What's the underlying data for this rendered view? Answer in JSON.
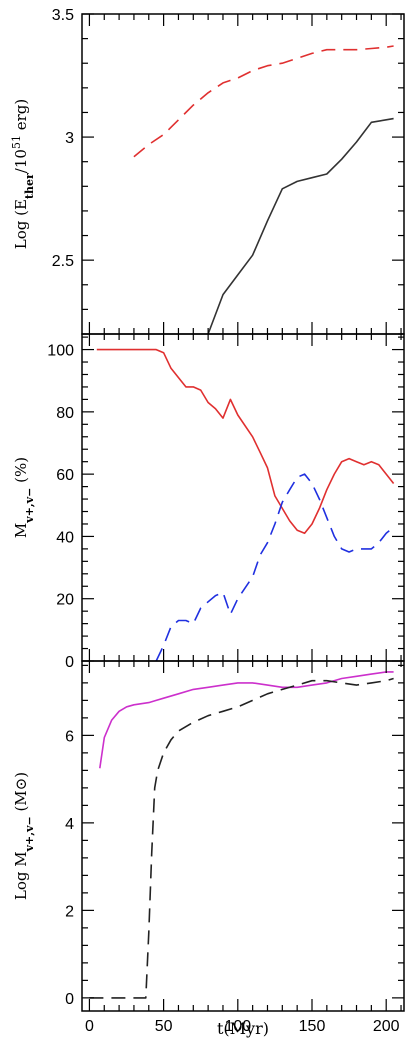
{
  "chart_data": [
    {
      "type": "line",
      "panel": "top",
      "ylabel_prefix": "Log (E",
      "ylabel_sub": "ther",
      "ylabel_mid": "/10",
      "ylabel_sup": "51",
      "ylabel_suffix": " erg)",
      "xlim": [
        -5,
        212
      ],
      "ylim": [
        2.2,
        3.5
      ],
      "yticks": [
        2.5,
        3.0,
        3.5
      ],
      "ytick_labels": [
        "2.5",
        "3",
        "3.5"
      ],
      "series": [
        {
          "color": "#e03030",
          "dash": "dashed",
          "x": [
            30,
            40,
            50,
            60,
            70,
            80,
            90,
            100,
            110,
            120,
            130,
            140,
            150,
            160,
            170,
            180,
            190,
            200,
            205
          ],
          "y": [
            2.92,
            2.97,
            3.01,
            3.07,
            3.13,
            3.18,
            3.22,
            3.24,
            3.27,
            3.29,
            3.3,
            3.32,
            3.34,
            3.355,
            3.355,
            3.355,
            3.36,
            3.365,
            3.37
          ]
        },
        {
          "color": "#333333",
          "dash": "solid",
          "x": [
            80,
            90,
            100,
            110,
            120,
            130,
            140,
            150,
            160,
            170,
            180,
            190,
            200,
            205
          ],
          "y": [
            2.2,
            2.36,
            2.44,
            2.52,
            2.66,
            2.79,
            2.82,
            2.835,
            2.85,
            2.91,
            2.98,
            3.06,
            3.07,
            3.075
          ]
        }
      ]
    },
    {
      "type": "line",
      "panel": "middle",
      "ylabel_prefix": "M",
      "ylabel_sub": "v+,v−",
      "ylabel_suffix": "  (%)",
      "xlim": [
        -5,
        212
      ],
      "ylim": [
        0,
        105
      ],
      "yticks": [
        0,
        20,
        40,
        60,
        80,
        100
      ],
      "ytick_labels": [
        "0",
        "20",
        "40",
        "60",
        "80",
        "100"
      ],
      "series": [
        {
          "color": "#e03030",
          "dash": "solid",
          "x": [
            5,
            20,
            40,
            45,
            50,
            55,
            65,
            70,
            75,
            80,
            85,
            90,
            95,
            100,
            110,
            115,
            120,
            125,
            130,
            135,
            140,
            145,
            150,
            155,
            160,
            165,
            170,
            175,
            180,
            185,
            190,
            195,
            200,
            205
          ],
          "y": [
            100,
            100,
            100,
            100,
            99,
            94,
            88,
            88,
            87,
            83,
            81,
            78,
            84,
            79,
            72,
            67,
            62,
            53,
            49,
            45,
            42,
            41,
            44,
            49,
            55,
            60,
            64,
            65,
            64,
            63,
            64,
            63,
            60,
            57
          ]
        },
        {
          "color": "#2030e0",
          "dash": "dashed",
          "x": [
            45,
            50,
            55,
            60,
            65,
            70,
            75,
            80,
            85,
            90,
            95,
            100,
            110,
            115,
            120,
            125,
            130,
            135,
            140,
            145,
            150,
            155,
            160,
            165,
            170,
            175,
            180,
            185,
            190,
            195,
            200,
            205
          ],
          "y": [
            0,
            5,
            11,
            13,
            13,
            12,
            17,
            19,
            21,
            22,
            15,
            20,
            27,
            34,
            38,
            44,
            51,
            55,
            59,
            60,
            57,
            52,
            46,
            40,
            36,
            35,
            36,
            36,
            36,
            38,
            41,
            43
          ]
        }
      ]
    },
    {
      "type": "line",
      "panel": "bottom",
      "ylabel_prefix": "Log  M",
      "ylabel_sub": "v+,v−",
      "ylabel_suffix": "  (M⊙)",
      "xlabel": "t(Myr)",
      "xlim": [
        -5,
        212
      ],
      "ylim": [
        -0.3,
        7.7
      ],
      "xticks": [
        0,
        50,
        100,
        150,
        200
      ],
      "xtick_labels": [
        "0",
        "50",
        "100",
        "150",
        "200"
      ],
      "yticks": [
        0,
        2,
        4,
        6
      ],
      "ytick_labels": [
        "0",
        "2",
        "4",
        "6"
      ],
      "series": [
        {
          "color": "#cc30cc",
          "dash": "solid",
          "x": [
            7,
            10,
            15,
            20,
            25,
            30,
            40,
            45,
            50,
            60,
            70,
            80,
            90,
            100,
            110,
            120,
            130,
            140,
            150,
            160,
            170,
            180,
            190,
            200,
            205
          ],
          "y": [
            5.25,
            5.95,
            6.35,
            6.55,
            6.65,
            6.7,
            6.75,
            6.8,
            6.85,
            6.95,
            7.05,
            7.1,
            7.15,
            7.2,
            7.2,
            7.15,
            7.1,
            7.1,
            7.15,
            7.2,
            7.3,
            7.35,
            7.4,
            7.45,
            7.45
          ]
        },
        {
          "color": "#222222",
          "dash": "dashed",
          "x": [
            0,
            10,
            20,
            30,
            38,
            40,
            42,
            44,
            46,
            50,
            55,
            60,
            70,
            80,
            90,
            100,
            110,
            120,
            130,
            140,
            150,
            160,
            170,
            180,
            190,
            200,
            205
          ],
          "y": [
            0,
            0,
            0,
            0,
            0,
            1.5,
            3.3,
            4.8,
            5.2,
            5.6,
            5.9,
            6.1,
            6.3,
            6.45,
            6.55,
            6.65,
            6.8,
            6.95,
            7.05,
            7.15,
            7.25,
            7.25,
            7.2,
            7.15,
            7.2,
            7.25,
            7.3
          ]
        }
      ]
    }
  ]
}
